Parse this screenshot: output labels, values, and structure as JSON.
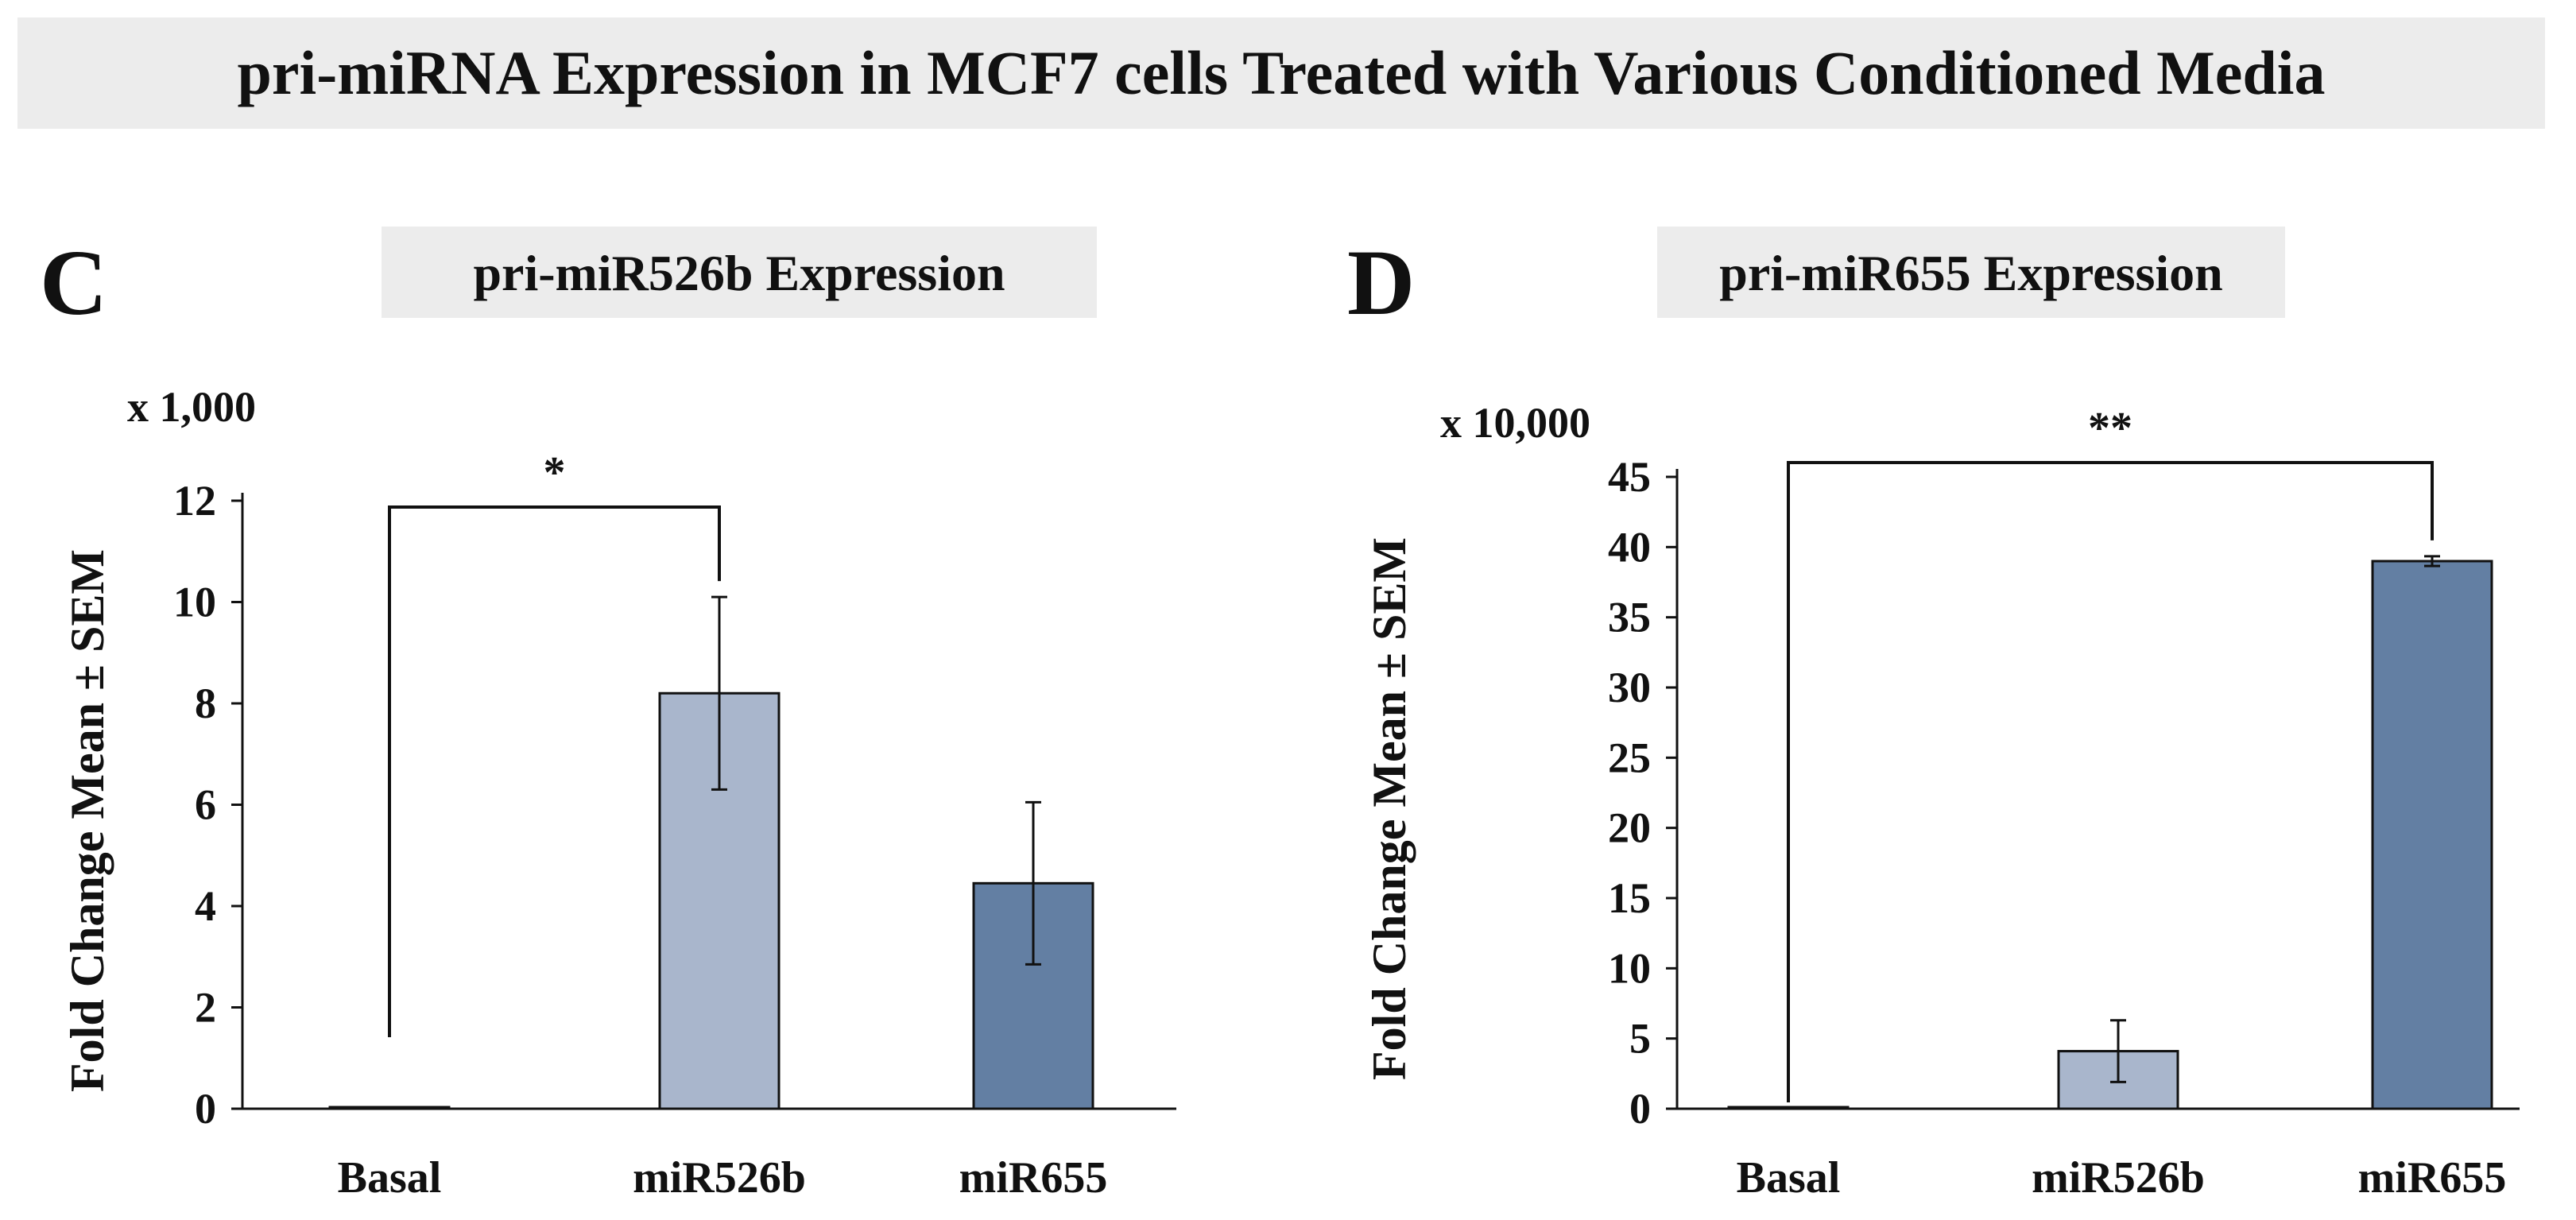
{
  "main_title": "pri-miRNA Expression in MCF7 cells Treated with Various Conditioned Media",
  "chart_data": [
    {
      "panel": "C",
      "type": "bar",
      "title": "pri-miR526b Expression",
      "ylabel": "Fold Change Mean ± SEM",
      "xlabel": "",
      "scale_label": "x 1,000",
      "ylim": [
        0,
        12
      ],
      "yticks": [
        0,
        2,
        4,
        6,
        8,
        10,
        12
      ],
      "categories": [
        "Basal",
        "miR526b",
        "miR655"
      ],
      "values": [
        0.02,
        8.2,
        4.45
      ],
      "errors": [
        0,
        1.9,
        1.6
      ],
      "bar_colors": [
        "#a9b6cc",
        "#a9b6cc",
        "#637fa3"
      ],
      "significance": {
        "from": "Basal",
        "to": "miR526b",
        "label": "*"
      }
    },
    {
      "panel": "D",
      "type": "bar",
      "title": "pri-miR655 Expression",
      "ylabel": "Fold Change Mean ± SEM",
      "xlabel": "",
      "scale_label": "x 10,000",
      "ylim": [
        0,
        45
      ],
      "yticks": [
        0,
        5,
        10,
        15,
        20,
        25,
        30,
        35,
        40,
        45
      ],
      "categories": [
        "Basal",
        "miR526b",
        "miR655"
      ],
      "values": [
        0.05,
        4.1,
        39
      ],
      "errors": [
        0,
        2.2,
        0.35
      ],
      "bar_colors": [
        "#a9b6cc",
        "#a9b6cc",
        "#637fa3"
      ],
      "significance": {
        "from": "Basal",
        "to": "miR655",
        "label": "**"
      }
    }
  ],
  "colors": {
    "title_box": "#ececec",
    "axis": "#111111"
  }
}
